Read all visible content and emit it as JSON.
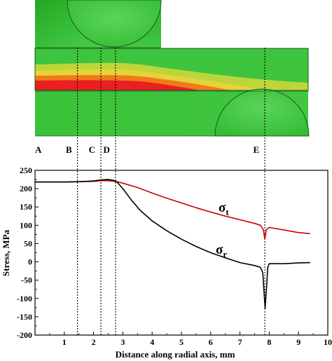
{
  "chart_data": {
    "type": "line",
    "title": "",
    "xlabel": "Distance along radial axis, mm",
    "ylabel": "Stress, MPa",
    "xlim": [
      0,
      10
    ],
    "ylim": [
      -200,
      250
    ],
    "x_ticks": [
      "1",
      "2",
      "3",
      "4",
      "5",
      "6",
      "7",
      "8",
      "9",
      "10"
    ],
    "y_ticks": [
      "250",
      "200",
      "150",
      "100",
      "50",
      "0",
      "-50",
      "-100",
      "-150",
      "-200"
    ],
    "grid": false,
    "legend": "none",
    "series": [
      {
        "name": "σt",
        "label_main": "σ",
        "label_sub": "t",
        "color": "#cc0000",
        "x": [
          0,
          1,
          1.5,
          2,
          2.3,
          2.6,
          2.8,
          3.0,
          3.5,
          4.0,
          4.5,
          5.0,
          5.5,
          6.0,
          6.5,
          7.0,
          7.5,
          7.7,
          7.8,
          7.85,
          7.9,
          8.0,
          8.5,
          9.0,
          9.4
        ],
        "y": [
          218,
          218,
          219,
          220,
          222,
          221,
          219,
          215,
          203,
          188,
          174,
          161,
          148,
          136,
          125,
          115,
          105,
          100,
          88,
          62,
          88,
          94,
          87,
          80,
          77
        ]
      },
      {
        "name": "σr",
        "label_main": "σ",
        "label_sub": "r",
        "color": "#000000",
        "x": [
          0,
          1,
          1.5,
          2,
          2.3,
          2.5,
          2.7,
          2.8,
          3.0,
          3.3,
          3.6,
          4.0,
          4.5,
          5.0,
          5.5,
          6.0,
          6.5,
          7.0,
          7.5,
          7.7,
          7.78,
          7.82,
          7.86,
          7.9,
          7.95,
          8.0,
          8.5,
          9.0,
          9.4
        ],
        "y": [
          218,
          218,
          219,
          221,
          224,
          225,
          222,
          218,
          200,
          168,
          140,
          112,
          85,
          62,
          42,
          25,
          11,
          -2,
          -10,
          -15,
          -30,
          -80,
          -127,
          -80,
          -15,
          -5,
          -5,
          -3,
          -2
        ]
      }
    ],
    "points": [
      {
        "label": "A",
        "x": 0
      },
      {
        "label": "B",
        "x": 1.45
      },
      {
        "label": "C",
        "x": 2.25
      },
      {
        "label": "D",
        "x": 2.75
      },
      {
        "label": "E",
        "x": 7.85
      }
    ],
    "colors": {
      "contour_base": "#3ec43e",
      "contour_high": "#e82020",
      "contour_mid": "#f07a1a",
      "contour_low": "#e6d23a"
    }
  }
}
